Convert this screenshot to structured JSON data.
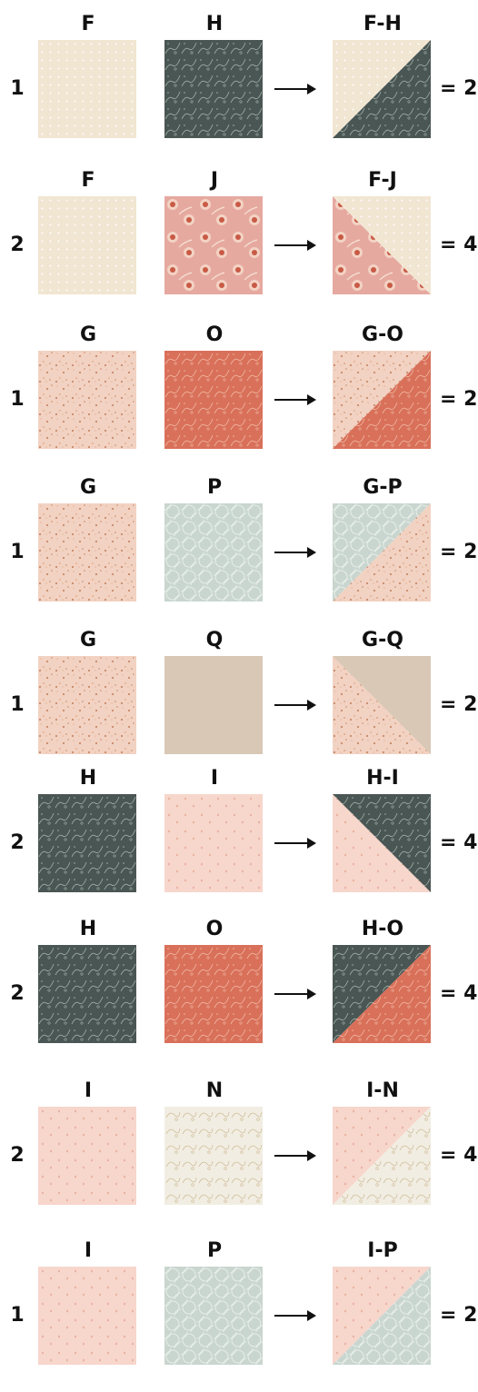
{
  "fabrics": {
    "F": {
      "base": "#f1e6d2",
      "pattern": "dots",
      "accent": "#ffffff"
    },
    "G": {
      "base": "#f2d2c2",
      "pattern": "floral",
      "accent": "#c98a6a"
    },
    "H": {
      "base": "#4a5653",
      "pattern": "vine",
      "accent": "#9fb0a8"
    },
    "I": {
      "base": "#f7d6cc",
      "pattern": "drops",
      "accent": "#e4a58f"
    },
    "J": {
      "base": "#e6a9a0",
      "pattern": "roses",
      "accent": "#c85a46"
    },
    "N": {
      "base": "#f1ede2",
      "pattern": "sketch",
      "accent": "#cdb892"
    },
    "O": {
      "base": "#d9705a",
      "pattern": "vine",
      "accent": "#f0b8a2"
    },
    "P": {
      "base": "#c9d6cf",
      "pattern": "net",
      "accent": "#eef3ef"
    },
    "Q": {
      "base": "#d8c8b5",
      "pattern": "solid",
      "accent": "#d8c8b5"
    }
  },
  "rows": [
    {
      "qty": "1",
      "a": "F",
      "b": "H",
      "result_label": "F-H",
      "result": "= 2",
      "diagonal": "bl-tr",
      "tl_side": "a"
    },
    {
      "qty": "2",
      "a": "F",
      "b": "J",
      "result_label": "F-J",
      "result": "= 4",
      "diagonal": "tl-br",
      "tl_side": "b"
    },
    {
      "qty": "1",
      "a": "G",
      "b": "O",
      "result_label": "G-O",
      "result": "= 2",
      "diagonal": "bl-tr",
      "tl_side": "a"
    },
    {
      "qty": "1",
      "a": "G",
      "b": "P",
      "result_label": "G-P",
      "result": "= 2",
      "diagonal": "bl-tr",
      "tl_side": "b"
    },
    {
      "qty": "1",
      "a": "G",
      "b": "Q",
      "result_label": "G-Q",
      "result": "= 2",
      "diagonal": "tl-br",
      "tl_side": "a"
    },
    {
      "qty": "2",
      "a": "H",
      "b": "I",
      "result_label": "H-I",
      "result": "= 4",
      "diagonal": "tl-br",
      "tl_side": "b"
    },
    {
      "qty": "2",
      "a": "H",
      "b": "O",
      "result_label": "H-O",
      "result": "= 4",
      "diagonal": "bl-tr",
      "tl_side": "a"
    },
    {
      "qty": "2",
      "a": "I",
      "b": "N",
      "result_label": "I-N",
      "result": "= 4",
      "diagonal": "bl-tr",
      "tl_side": "a"
    },
    {
      "qty": "1",
      "a": "I",
      "b": "P",
      "result_label": "I-P",
      "result": "= 2",
      "diagonal": "bl-tr",
      "tl_side": "a"
    }
  ]
}
